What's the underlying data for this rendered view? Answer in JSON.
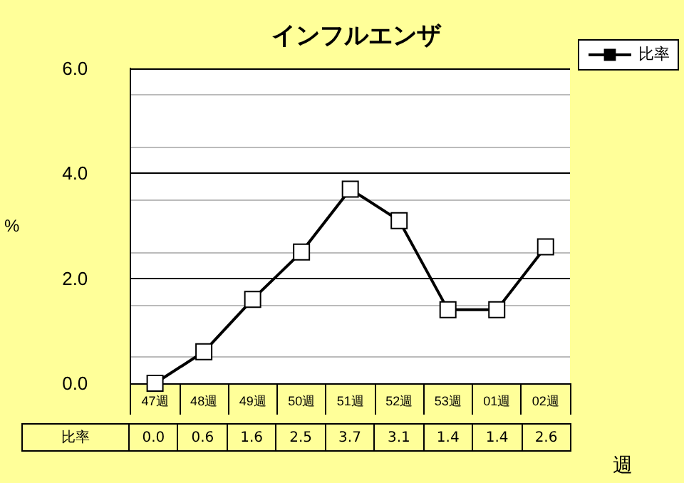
{
  "chart_data": {
    "type": "line",
    "title": "インフルエンザ",
    "xlabel": "週",
    "ylabel": "%",
    "categories": [
      "47週",
      "48週",
      "49週",
      "50週",
      "51週",
      "52週",
      "53週",
      "01週",
      "02週"
    ],
    "series": [
      {
        "name": "比率",
        "color": "#000000",
        "values": [
          0.0,
          0.6,
          1.6,
          2.5,
          3.7,
          3.1,
          1.4,
          1.4,
          2.6
        ],
        "value_labels": [
          "0.0",
          "0.6",
          "1.6",
          "2.5",
          "3.7",
          "3.1",
          "1.4",
          "1.4",
          "2.6"
        ]
      }
    ],
    "ylim": [
      0,
      6
    ],
    "yticks": [
      {
        "value": 0,
        "label": "0.0"
      },
      {
        "value": 2,
        "label": "2.0"
      },
      {
        "value": 4,
        "label": "4.0"
      },
      {
        "value": 6,
        "label": "6.0"
      }
    ],
    "grid": "y",
    "legend": "top right",
    "marker": "square",
    "line_style": "solid"
  }
}
